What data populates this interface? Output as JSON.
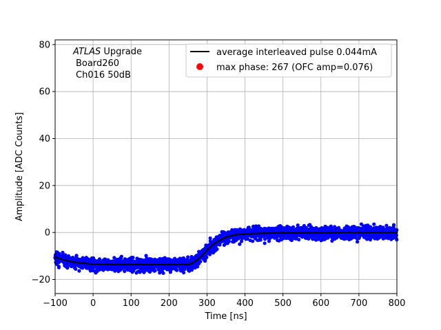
{
  "chart_data": {
    "type": "scatter",
    "title": "",
    "xlabel": "Time [ns]",
    "ylabel": "Amplitude [ADC Counts]",
    "xlim": [
      -100,
      800
    ],
    "ylim": [
      -26,
      82
    ],
    "xticks": [
      -100,
      0,
      100,
      200,
      300,
      400,
      500,
      600,
      700,
      800
    ],
    "yticks": [
      -20,
      0,
      20,
      40,
      60,
      80
    ],
    "grid": true,
    "legend_position": "top-right",
    "annotation": {
      "line1_italic": "ATLAS",
      "line1_rest": " Upgrade",
      "line2": "Board260",
      "line3": "Ch016 50dB"
    },
    "series": [
      {
        "name": "average interleaved pulse 0.044mA",
        "type": "line",
        "color": "#000000",
        "x": [
          -100,
          -75,
          -50,
          -25,
          0,
          50,
          100,
          150,
          200,
          250,
          260,
          275,
          290,
          300,
          315,
          330,
          350,
          375,
          400,
          450,
          500,
          600,
          700,
          800
        ],
        "y": [
          -10.5,
          -11.8,
          -12.6,
          -13.1,
          -13.5,
          -13.6,
          -13.6,
          -13.7,
          -13.7,
          -13.6,
          -13.2,
          -11.6,
          -9.4,
          -7.6,
          -5.3,
          -3.6,
          -2.0,
          -1.0,
          -0.6,
          -0.3,
          -0.2,
          -0.1,
          0.0,
          0.0
        ]
      },
      {
        "name": "",
        "type": "scatter",
        "color": "#0000ff",
        "description_band": "noisy samples around the average pulse"
      },
      {
        "name": "max phase: 267 (OFC amp=0.076)",
        "type": "marker",
        "color": "#ff0000"
      }
    ],
    "legend": {
      "line_label": "average interleaved pulse 0.044mA",
      "marker_label": "max phase: 267 (OFC amp=0.076)"
    }
  }
}
